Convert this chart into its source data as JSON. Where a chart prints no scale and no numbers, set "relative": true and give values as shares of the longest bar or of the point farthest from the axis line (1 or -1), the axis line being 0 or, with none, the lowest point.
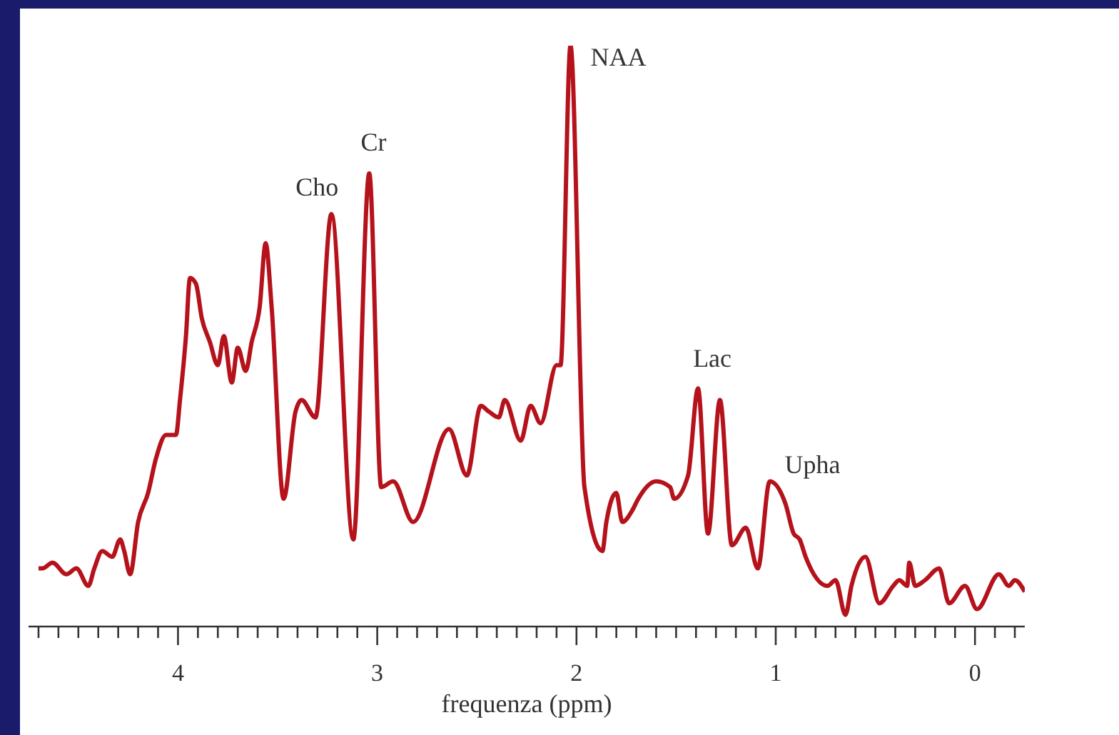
{
  "chart_data": {
    "type": "line",
    "relative": true,
    "xlabel": "frequenza (ppm)",
    "xlim": [
      4.75,
      -0.25
    ],
    "xticks": [
      {
        "value": 4.7,
        "label": null
      },
      {
        "value": 4.6,
        "label": null
      },
      {
        "value": 4.5,
        "label": null
      },
      {
        "value": 4.4,
        "label": null
      },
      {
        "value": 4.3,
        "label": null
      },
      {
        "value": 4.2,
        "label": null
      },
      {
        "value": 4.1,
        "label": null
      },
      4,
      {
        "value": 3.9,
        "label": null
      },
      {
        "value": 3.8,
        "label": null
      },
      {
        "value": 3.7,
        "label": null
      },
      {
        "value": 3.6,
        "label": null
      },
      {
        "value": 3.5,
        "label": null
      },
      {
        "value": 3.4,
        "label": null
      },
      {
        "value": 3.3,
        "label": null
      },
      {
        "value": 3.2,
        "label": null
      },
      {
        "value": 3.1,
        "label": null
      },
      3,
      {
        "value": 2.9,
        "label": null
      },
      {
        "value": 2.8,
        "label": null
      },
      {
        "value": 2.7,
        "label": null
      },
      {
        "value": 2.6,
        "label": null
      },
      {
        "value": 2.5,
        "label": null
      },
      {
        "value": 2.4,
        "label": null
      },
      {
        "value": 2.3,
        "label": null
      },
      {
        "value": 2.2,
        "label": null
      },
      {
        "value": 2.1,
        "label": null
      },
      2,
      {
        "value": 1.9,
        "label": null
      },
      {
        "value": 1.8,
        "label": null
      },
      {
        "value": 1.7,
        "label": null
      },
      {
        "value": 1.6,
        "label": null
      },
      {
        "value": 1.5,
        "label": null
      },
      {
        "value": 1.4,
        "label": null
      },
      {
        "value": 1.3,
        "label": null
      },
      {
        "value": 1.2,
        "label": null
      },
      {
        "value": 1.1,
        "label": null
      },
      1,
      {
        "value": 0.9,
        "label": null
      },
      {
        "value": 0.8,
        "label": null
      },
      {
        "value": 0.7,
        "label": null
      },
      {
        "value": 0.6,
        "label": null
      },
      {
        "value": 0.5,
        "label": null
      },
      {
        "value": 0.4,
        "label": null
      },
      {
        "value": 0.3,
        "label": null
      },
      {
        "value": 0.2,
        "label": null
      },
      {
        "value": 0.1,
        "label": null
      },
      0,
      {
        "value": -0.1,
        "label": null
      },
      {
        "value": -0.2,
        "label": null
      }
    ],
    "marker": "none",
    "line_style": "solid",
    "grid": false,
    "legend": false,
    "x": [
      4.7,
      4.68,
      4.63,
      4.56,
      4.51,
      4.45,
      4.42,
      4.38,
      4.33,
      4.29,
      4.27,
      4.24,
      4.2,
      4.15,
      4.11,
      4.06,
      4.01,
      3.99,
      3.96,
      3.94,
      3.91,
      3.88,
      3.84,
      3.8,
      3.77,
      3.73,
      3.7,
      3.66,
      3.63,
      3.59,
      3.56,
      3.53,
      3.47,
      3.41,
      3.38,
      3.31,
      3.23,
      3.12,
      3.04,
      2.98,
      2.92,
      2.82,
      2.64,
      2.55,
      2.48,
      2.44,
      2.39,
      2.36,
      2.28,
      2.23,
      2.18,
      2.1,
      2.08,
      2.03,
      1.96,
      1.87,
      1.85,
      1.8,
      1.77,
      1.72,
      1.69,
      1.6,
      1.53,
      1.51,
      1.44,
      1.39,
      1.34,
      1.28,
      1.22,
      1.15,
      1.09,
      1.03,
      0.95,
      0.91,
      0.88,
      0.85,
      0.74,
      0.7,
      0.65,
      0.62,
      0.55,
      0.48,
      0.41,
      0.38,
      0.34,
      0.33,
      0.3,
      0.25,
      0.18,
      0.13,
      0.05,
      -0.01,
      -0.12,
      -0.17,
      -0.2,
      -0.25
    ],
    "series": [
      {
        "color": "#b5121b",
        "values": [
          0.1,
          0.1,
          0.11,
          0.09,
          0.1,
          0.07,
          0.1,
          0.13,
          0.12,
          0.15,
          0.13,
          0.09,
          0.18,
          0.23,
          0.29,
          0.33,
          0.33,
          0.39,
          0.5,
          0.6,
          0.59,
          0.53,
          0.49,
          0.45,
          0.5,
          0.42,
          0.48,
          0.44,
          0.49,
          0.55,
          0.66,
          0.55,
          0.22,
          0.37,
          0.39,
          0.36,
          0.71,
          0.15,
          0.78,
          0.24,
          0.25,
          0.18,
          0.34,
          0.26,
          0.38,
          0.37,
          0.36,
          0.39,
          0.32,
          0.38,
          0.35,
          0.45,
          0.45,
          1,
          0.24,
          0.13,
          0.18,
          0.23,
          0.18,
          0.2,
          0.22,
          0.25,
          0.24,
          0.22,
          0.26,
          0.41,
          0.16,
          0.39,
          0.14,
          0.17,
          0.1,
          0.25,
          0.21,
          0.16,
          0.15,
          0.12,
          0.07,
          0.08,
          0.02,
          0.07,
          0.12,
          0.04,
          0.07,
          0.08,
          0.07,
          0.11,
          0.07,
          0.08,
          0.1,
          0.04,
          0.07,
          0.03,
          0.09,
          0.07,
          0.08,
          0.06
        ]
      }
    ],
    "annotations": [
      {
        "text": "Cho",
        "x": 3.23,
        "y": 0.71
      },
      {
        "text": "Cr",
        "x": 3.04,
        "y": 0.78
      },
      {
        "text": "NAA",
        "x": 2.03,
        "y": 1
      },
      {
        "text": "Lac",
        "x": 1.39,
        "y": 0.41
      },
      {
        "text": "Upha",
        "x": 1.03,
        "y": 0.25
      }
    ]
  }
}
